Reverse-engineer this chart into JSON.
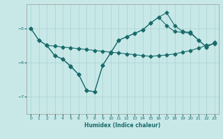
{
  "xlabel": "Humidex (Indice chaleur)",
  "bg_color": "#c8e8e8",
  "line_color": "#1a6b6b",
  "grid_color": "#a8d0d0",
  "xlim": [
    -0.5,
    23.5
  ],
  "ylim": [
    -7.5,
    -4.3
  ],
  "yticks": [
    -7,
    -6,
    -5
  ],
  "xticks": [
    0,
    1,
    2,
    3,
    4,
    5,
    6,
    7,
    8,
    9,
    10,
    11,
    12,
    13,
    14,
    15,
    16,
    17,
    18,
    19,
    20,
    21,
    22,
    23
  ],
  "series1_x": [
    0,
    1,
    2,
    3,
    4,
    5,
    6,
    7,
    8,
    9,
    10,
    11,
    12,
    13,
    14,
    15,
    16,
    17,
    18,
    19,
    20,
    21,
    22,
    23
  ],
  "series1_y": [
    -5.0,
    -5.35,
    -5.5,
    -5.52,
    -5.55,
    -5.57,
    -5.6,
    -5.62,
    -5.65,
    -5.67,
    -5.7,
    -5.72,
    -5.75,
    -5.77,
    -5.8,
    -5.82,
    -5.8,
    -5.78,
    -5.75,
    -5.7,
    -5.65,
    -5.58,
    -5.5,
    -5.45
  ],
  "series2_x": [
    0,
    1,
    2,
    3,
    4,
    5,
    6,
    7,
    8,
    9,
    10,
    11,
    12,
    13,
    14,
    15,
    16,
    17,
    18,
    19,
    20,
    21,
    22,
    23
  ],
  "series2_y": [
    -5.0,
    -5.35,
    -5.5,
    -5.8,
    -5.9,
    -6.1,
    -6.35,
    -6.82,
    -6.85,
    -6.08,
    -5.72,
    -5.35,
    -5.25,
    -5.15,
    -5.05,
    -4.85,
    -4.68,
    -4.92,
    -5.1,
    -5.12,
    -5.15,
    -5.35,
    -5.55,
    -5.42
  ],
  "series3_x": [
    2,
    3,
    4,
    5,
    6,
    7,
    8,
    9,
    10,
    11,
    12,
    13,
    14,
    15,
    16,
    17,
    18,
    19,
    20,
    21,
    22,
    23
  ],
  "series3_y": [
    -5.5,
    -5.8,
    -5.9,
    -6.12,
    -6.35,
    -6.82,
    -6.85,
    -6.08,
    -5.72,
    -5.35,
    -5.25,
    -5.15,
    -5.05,
    -4.85,
    -4.68,
    -4.55,
    -4.92,
    -5.1,
    -5.12,
    -5.35,
    -5.55,
    -5.42
  ]
}
